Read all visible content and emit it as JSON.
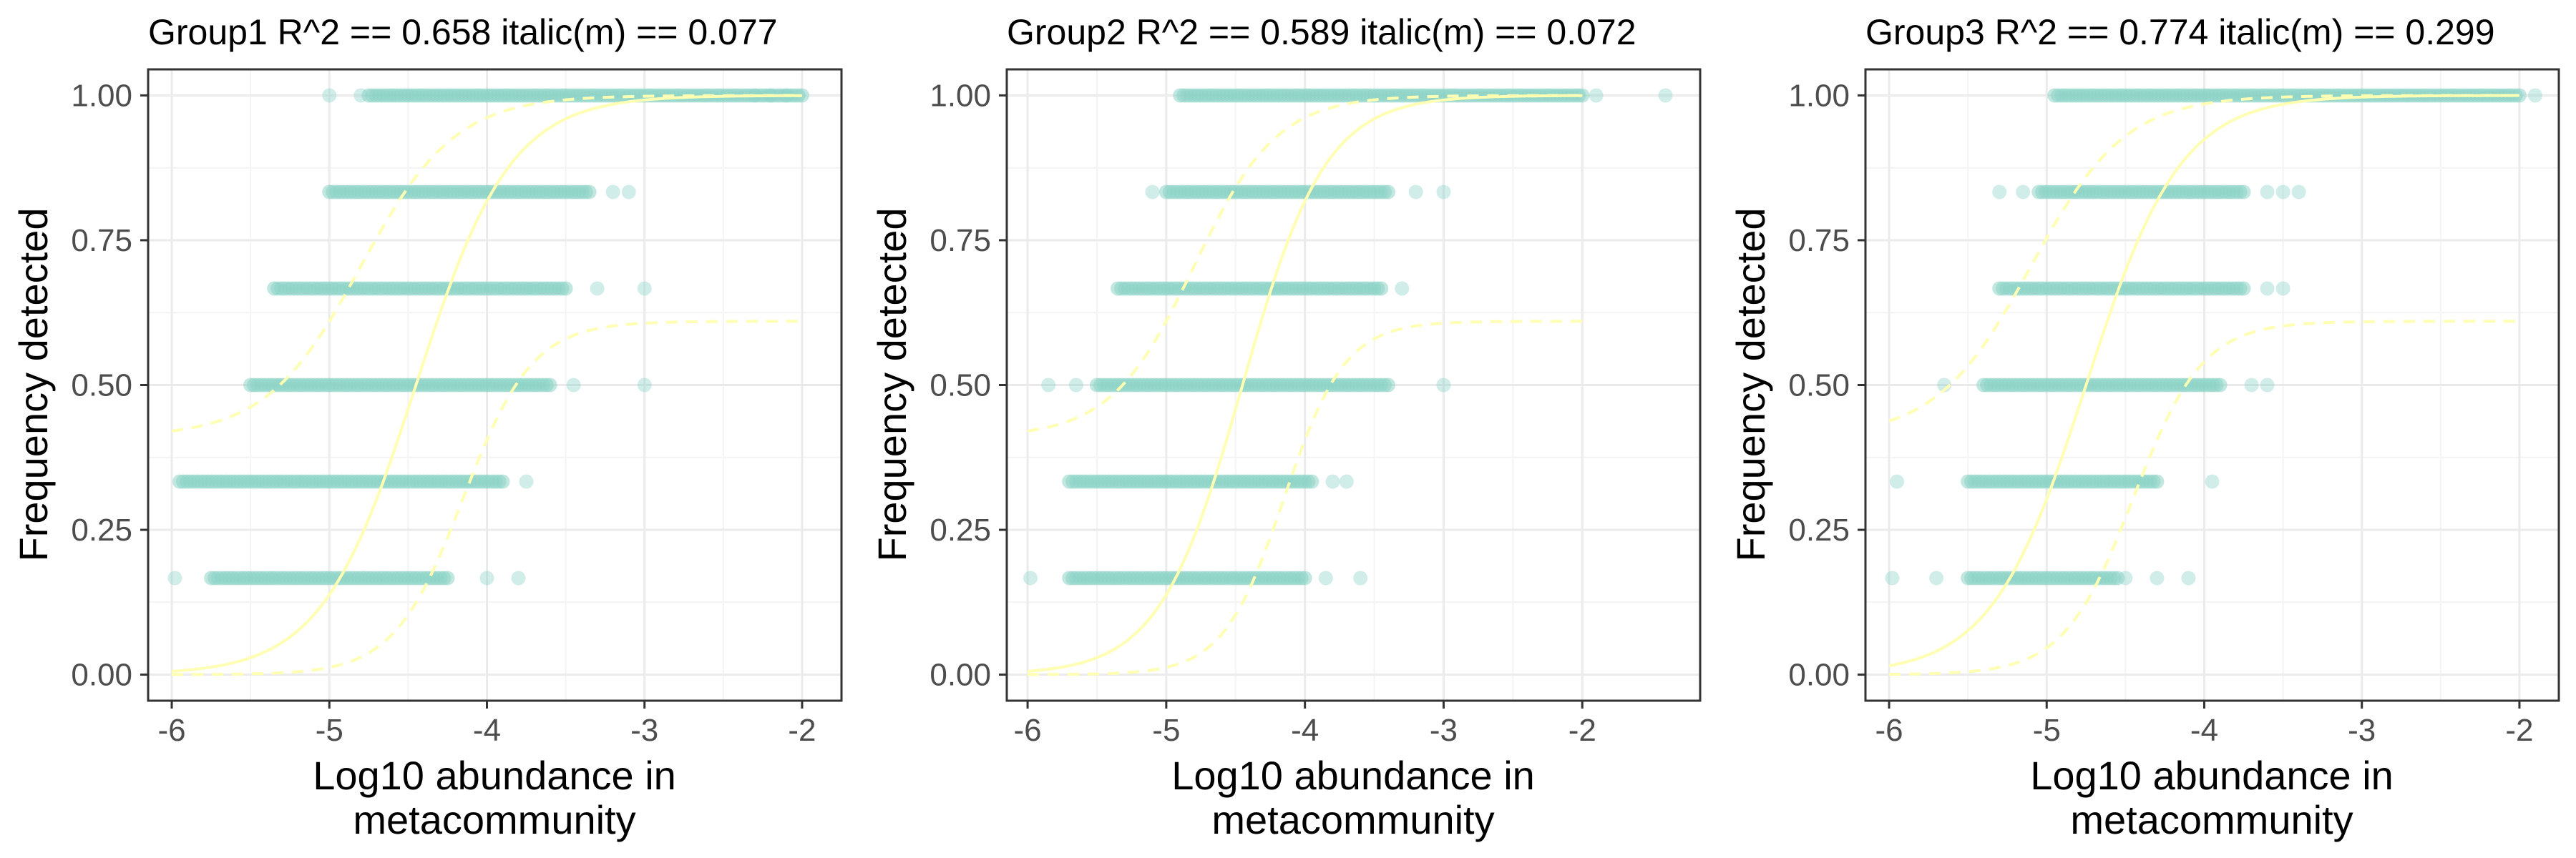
{
  "colors": {
    "points": "#8dd3c7",
    "fit_line": "#ffffb3",
    "panel_border": "#333333",
    "grid": "#ebebeb"
  },
  "chart_data": [
    {
      "type": "scatter",
      "title": "Group1 R^2 ==  0.658 italic(m) == 0.077",
      "xlabel_lines": [
        "Log10 abundance in",
        "metacommunity"
      ],
      "ylabel": "Frequency detected",
      "xlim": [
        -6.15,
        -1.75
      ],
      "ylim": [
        -0.045,
        1.045
      ],
      "x_ticks": [
        -6,
        -5,
        -4,
        -3,
        -2
      ],
      "x_tick_labels": [
        "-6",
        "-5",
        "-4",
        "-3",
        "-2"
      ],
      "y_ticks": [
        0,
        0.25,
        0.5,
        0.75,
        1
      ],
      "y_tick_labels": [
        "0.00",
        "0.25",
        "0.50",
        "0.75",
        "1.00"
      ],
      "grid": true,
      "point_rows": [
        {
          "y": 1.0,
          "x_min": -4.75,
          "x_max": -2.0,
          "outliers": [
            -5.0,
            -4.8,
            -2.3,
            -2.2,
            -2.1
          ]
        },
        {
          "y": 0.8333,
          "x_min": -5.0,
          "x_max": -3.35,
          "outliers": [
            -3.2,
            -3.1
          ]
        },
        {
          "y": 0.6667,
          "x_min": -5.35,
          "x_max": -3.5,
          "outliers": [
            -3.3,
            -3.0
          ]
        },
        {
          "y": 0.5,
          "x_min": -5.5,
          "x_max": -3.6,
          "outliers": [
            -3.45,
            -3.0
          ]
        },
        {
          "y": 0.3333,
          "x_min": -5.95,
          "x_max": -3.9,
          "outliers": [
            -3.75
          ]
        },
        {
          "y": 0.1667,
          "x_min": -5.75,
          "x_max": -4.25,
          "outliers": [
            -5.98,
            -4.0,
            -3.8
          ]
        }
      ],
      "fit": {
        "center": -4.45,
        "scale": 0.3
      },
      "ci_upper": {
        "center": -4.8,
        "scale": 0.3,
        "lower_plateau": 0.41,
        "upper_plateau": 1.0
      },
      "ci_lower": {
        "center": -4.15,
        "scale": 0.22,
        "lower_plateau": 0.0,
        "upper_plateau": 0.61
      }
    },
    {
      "type": "scatter",
      "title": "Group2 R^2 ==  0.589 italic(m) == 0.072",
      "xlabel_lines": [
        "Log10 abundance in",
        "metacommunity"
      ],
      "ylabel": "Frequency detected",
      "xlim": [
        -6.15,
        -1.15
      ],
      "ylim": [
        -0.045,
        1.045
      ],
      "x_ticks": [
        -6,
        -5,
        -4,
        -3,
        -2
      ],
      "x_tick_labels": [
        "-6",
        "-5",
        "-4",
        "-3",
        "-2"
      ],
      "y_ticks": [
        0,
        0.25,
        0.5,
        0.75,
        1
      ],
      "y_tick_labels": [
        "0.00",
        "0.25",
        "0.50",
        "0.75",
        "1.00"
      ],
      "grid": true,
      "point_rows": [
        {
          "y": 1.0,
          "x_min": -4.9,
          "x_max": -2.0,
          "outliers": [
            -1.9,
            -1.4
          ]
        },
        {
          "y": 0.8333,
          "x_min": -5.0,
          "x_max": -3.4,
          "outliers": [
            -5.1,
            -3.2,
            -3.0
          ]
        },
        {
          "y": 0.6667,
          "x_min": -5.35,
          "x_max": -3.45,
          "outliers": [
            -3.3
          ]
        },
        {
          "y": 0.5,
          "x_min": -5.5,
          "x_max": -3.4,
          "outliers": [
            -5.85,
            -5.65,
            -3.0
          ]
        },
        {
          "y": 0.3333,
          "x_min": -5.7,
          "x_max": -3.95,
          "outliers": [
            -3.8,
            -3.7
          ]
        },
        {
          "y": 0.1667,
          "x_min": -5.7,
          "x_max": -4.0,
          "outliers": [
            -5.98,
            -3.85,
            -3.6
          ]
        }
      ],
      "fit": {
        "center": -4.45,
        "scale": 0.3
      },
      "ci_upper": {
        "center": -4.8,
        "scale": 0.3,
        "lower_plateau": 0.41,
        "upper_plateau": 1.0
      },
      "ci_lower": {
        "center": -4.15,
        "scale": 0.22,
        "lower_plateau": 0.0,
        "upper_plateau": 0.61
      }
    },
    {
      "type": "scatter",
      "title": "Group3 R^2 ==  0.774 italic(m) == 0.299",
      "xlabel_lines": [
        "Log10 abundance in",
        "metacommunity"
      ],
      "ylabel": "Frequency detected",
      "xlim": [
        -6.15,
        -1.75
      ],
      "ylim": [
        -0.045,
        1.045
      ],
      "x_ticks": [
        -6,
        -5,
        -4,
        -3,
        -2
      ],
      "x_tick_labels": [
        "-6",
        "-5",
        "-4",
        "-3",
        "-2"
      ],
      "y_ticks": [
        0,
        0.25,
        0.5,
        0.75,
        1
      ],
      "y_tick_labels": [
        "0.00",
        "0.25",
        "0.50",
        "0.75",
        "1.00"
      ],
      "grid": true,
      "point_rows": [
        {
          "y": 1.0,
          "x_min": -4.95,
          "x_max": -2.0,
          "outliers": [
            -1.9
          ]
        },
        {
          "y": 0.8333,
          "x_min": -5.05,
          "x_max": -3.75,
          "outliers": [
            -5.3,
            -5.15,
            -3.6,
            -3.5,
            -3.4
          ]
        },
        {
          "y": 0.6667,
          "x_min": -5.3,
          "x_max": -3.75,
          "outliers": [
            -3.6,
            -3.5
          ]
        },
        {
          "y": 0.5,
          "x_min": -5.4,
          "x_max": -3.9,
          "outliers": [
            -5.65,
            -3.7,
            -3.6
          ]
        },
        {
          "y": 0.3333,
          "x_min": -5.5,
          "x_max": -4.3,
          "outliers": [
            -5.95,
            -3.95
          ]
        },
        {
          "y": 0.1667,
          "x_min": -5.5,
          "x_max": -4.55,
          "outliers": [
            -5.98,
            -5.7,
            -4.5,
            -4.3,
            -4.1
          ]
        }
      ],
      "fit": {
        "center": -4.75,
        "scale": 0.3
      },
      "ci_upper": {
        "center": -5.1,
        "scale": 0.3,
        "lower_plateau": 0.41,
        "upper_plateau": 1.0
      },
      "ci_lower": {
        "center": -4.45,
        "scale": 0.22,
        "lower_plateau": 0.0,
        "upper_plateau": 0.61
      }
    }
  ]
}
